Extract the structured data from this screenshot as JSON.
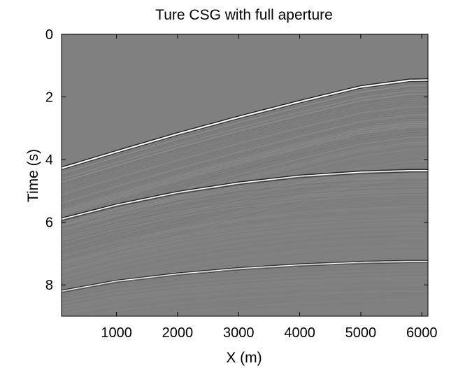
{
  "chart_data": {
    "type": "heatmap",
    "title": "Ture CSG with full aperture",
    "xlabel": "X (m)",
    "ylabel": "Time (s)",
    "xlim": [
      100,
      6100
    ],
    "ylim": [
      0,
      9
    ],
    "y_reversed": true,
    "grid": false,
    "colormap": "gray",
    "background_value": "mid-gray",
    "x_ticks": [
      1000,
      2000,
      3000,
      4000,
      5000,
      6000
    ],
    "x_tick_labels": [
      "1000",
      "2000",
      "3000",
      "4000",
      "5000",
      "6000"
    ],
    "y_ticks": [
      0,
      2,
      4,
      6,
      8
    ],
    "y_tick_labels": [
      "0",
      "2",
      "4",
      "6",
      "8"
    ],
    "events": [
      {
        "label": "first reflection",
        "x": [
          100,
          1000,
          2000,
          3000,
          4000,
          5000,
          5800,
          6100
        ],
        "t": [
          4.28,
          3.75,
          3.18,
          2.65,
          2.15,
          1.68,
          1.47,
          1.46
        ],
        "strength": "strong"
      },
      {
        "label": "second reflection",
        "x": [
          100,
          1000,
          2000,
          3000,
          4000,
          5000,
          5800,
          6100
        ],
        "t": [
          5.9,
          5.45,
          5.05,
          4.75,
          4.53,
          4.4,
          4.35,
          4.35
        ],
        "strength": "medium"
      },
      {
        "label": "third reflection",
        "x": [
          100,
          1000,
          2000,
          3000,
          4000,
          5000,
          5800,
          6100
        ],
        "t": [
          8.2,
          7.88,
          7.65,
          7.48,
          7.36,
          7.28,
          7.25,
          7.25
        ],
        "strength": "weak"
      }
    ]
  }
}
